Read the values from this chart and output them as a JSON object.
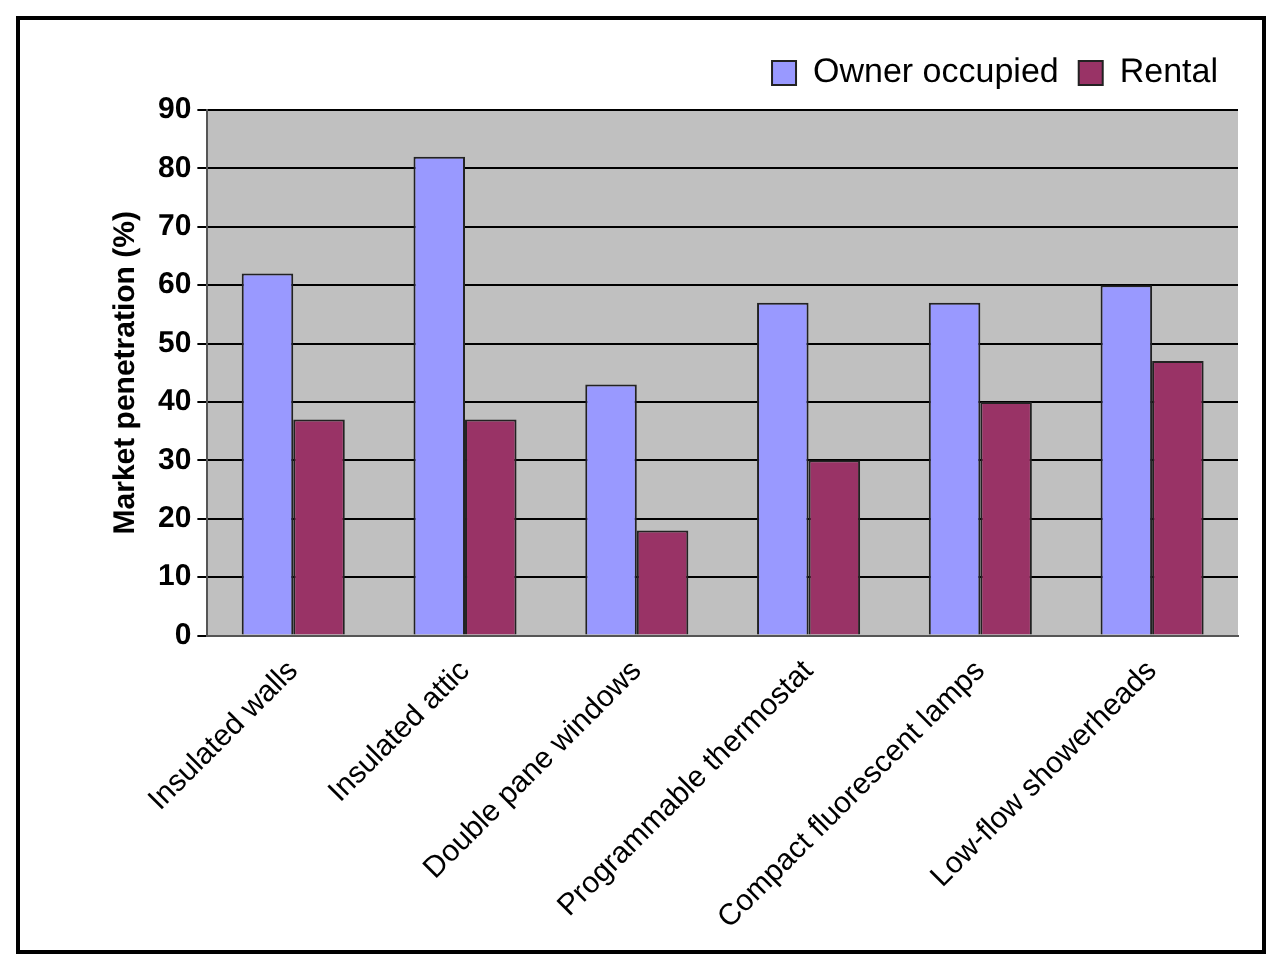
{
  "chart_data": {
    "type": "bar",
    "ylabel": "Market penetration (%)",
    "categories": [
      "Insulated walls",
      "Insulated attic",
      "Double pane windows",
      "Programmable thermostat",
      "Compact fluorescent lamps",
      "Low-flow showerheads"
    ],
    "series": [
      {
        "name": "Owner occupied",
        "color": "#9999ff",
        "values": [
          62,
          82,
          43,
          57,
          57,
          60
        ]
      },
      {
        "name": "Rental",
        "color": "#993366",
        "values": [
          37,
          37,
          18,
          30,
          40,
          47
        ]
      }
    ],
    "ylim": [
      0,
      90
    ],
    "yticks": [
      0,
      10,
      20,
      30,
      40,
      50,
      60,
      70,
      80,
      90
    ],
    "grid": "y",
    "legend": "top right"
  }
}
